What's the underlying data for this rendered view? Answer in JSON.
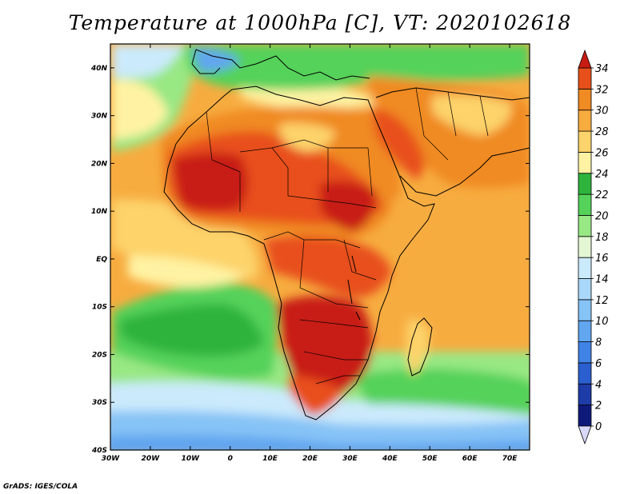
{
  "title": "Temperature at 1000hPa [C], VT: 2020102618",
  "credit": "GrADS: IGES/COLA",
  "map": {
    "lon_range": [
      -30,
      75
    ],
    "lat_range": [
      -40,
      45
    ],
    "lon_ticks": [
      {
        "value": -30,
        "label": "30W"
      },
      {
        "value": -20,
        "label": "20W"
      },
      {
        "value": -10,
        "label": "10W"
      },
      {
        "value": 0,
        "label": "0"
      },
      {
        "value": 10,
        "label": "10E"
      },
      {
        "value": 20,
        "label": "20E"
      },
      {
        "value": 30,
        "label": "30E"
      },
      {
        "value": 40,
        "label": "40E"
      },
      {
        "value": 50,
        "label": "50E"
      },
      {
        "value": 60,
        "label": "60E"
      },
      {
        "value": 70,
        "label": "70E"
      }
    ],
    "lat_ticks": [
      {
        "value": 40,
        "label": "40N"
      },
      {
        "value": 30,
        "label": "30N"
      },
      {
        "value": 20,
        "label": "20N"
      },
      {
        "value": 10,
        "label": "10N"
      },
      {
        "value": 0,
        "label": "EQ"
      },
      {
        "value": -10,
        "label": "10S"
      },
      {
        "value": -20,
        "label": "20S"
      },
      {
        "value": -30,
        "label": "30S"
      },
      {
        "value": -40,
        "label": "40S"
      }
    ]
  },
  "colorbar": {
    "levels": [
      {
        "label": "0",
        "color": "#0d1a7a"
      },
      {
        "label": "2",
        "color": "#1e3ca8"
      },
      {
        "label": "4",
        "color": "#2b5fd0"
      },
      {
        "label": "6",
        "color": "#3f83e6"
      },
      {
        "label": "8",
        "color": "#62a6f0"
      },
      {
        "label": "10",
        "color": "#86c3f6"
      },
      {
        "label": "12",
        "color": "#aad8fa"
      },
      {
        "label": "14",
        "color": "#cbeafc"
      },
      {
        "label": "16",
        "color": "#e4f7d4"
      },
      {
        "label": "18",
        "color": "#98e884"
      },
      {
        "label": "20",
        "color": "#55d25a"
      },
      {
        "label": "22",
        "color": "#2eb43d"
      },
      {
        "label": "24",
        "color": "#fff3a3"
      },
      {
        "label": "26",
        "color": "#fdd36b"
      },
      {
        "label": "28",
        "color": "#f7ac40"
      },
      {
        "label": "30",
        "color": "#f08a22"
      },
      {
        "label": "32",
        "color": "#e8501b"
      },
      {
        "label": "34",
        "color": "#c81b12"
      }
    ],
    "under_color": "#d8d8f8",
    "over_color": "#c81b12"
  }
}
